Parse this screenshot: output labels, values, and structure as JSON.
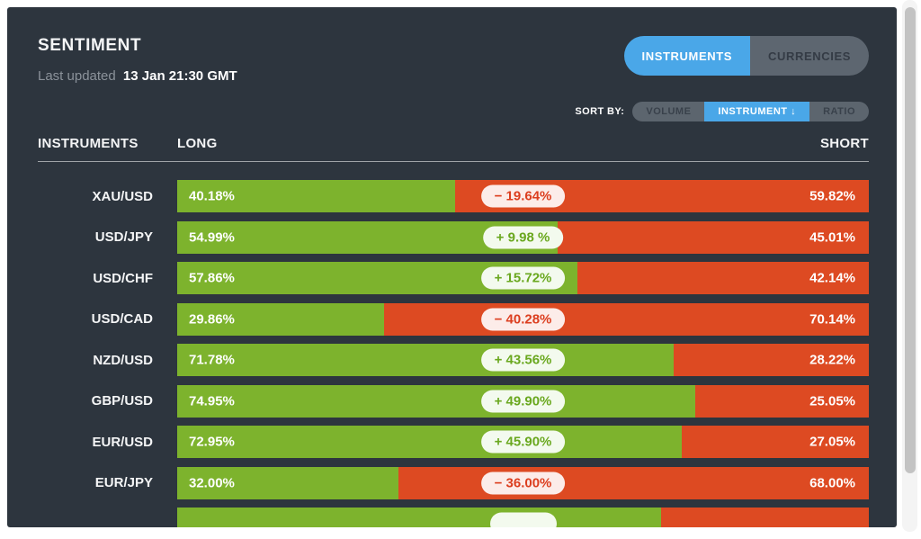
{
  "header": {
    "title": "SENTIMENT",
    "last_updated_label": "Last updated",
    "last_updated_value": "13 Jan 21:30 GMT",
    "view_toggle": [
      {
        "label": "INSTRUMENTS",
        "active": true
      },
      {
        "label": "CURRENCIES",
        "active": false
      }
    ]
  },
  "sort": {
    "label": "SORT BY:",
    "options": [
      {
        "label": "VOLUME",
        "active": false
      },
      {
        "label": "INSTRUMENT ↓",
        "active": true
      },
      {
        "label": "RATIO",
        "active": false
      }
    ]
  },
  "table": {
    "columns": {
      "instruments": "INSTRUMENTS",
      "long": "LONG",
      "short": "SHORT"
    }
  },
  "rows": [
    {
      "instrument": "XAU/USD",
      "long": "40.18%",
      "short": "59.82%",
      "delta": "− 19.64%",
      "delta_sign": "negative",
      "long_pct": 40.18
    },
    {
      "instrument": "USD/JPY",
      "long": "54.99%",
      "short": "45.01%",
      "delta": "+ 9.98 %",
      "delta_sign": "positive",
      "long_pct": 54.99
    },
    {
      "instrument": "USD/CHF",
      "long": "57.86%",
      "short": "42.14%",
      "delta": "+ 15.72%",
      "delta_sign": "positive",
      "long_pct": 57.86
    },
    {
      "instrument": "USD/CAD",
      "long": "29.86%",
      "short": "70.14%",
      "delta": "− 40.28%",
      "delta_sign": "negative",
      "long_pct": 29.86
    },
    {
      "instrument": "NZD/USD",
      "long": "71.78%",
      "short": "28.22%",
      "delta": "+ 43.56%",
      "delta_sign": "positive",
      "long_pct": 71.78
    },
    {
      "instrument": "GBP/USD",
      "long": "74.95%",
      "short": "25.05%",
      "delta": "+ 49.90%",
      "delta_sign": "positive",
      "long_pct": 74.95
    },
    {
      "instrument": "EUR/USD",
      "long": "72.95%",
      "short": "27.05%",
      "delta": "+ 45.90%",
      "delta_sign": "positive",
      "long_pct": 72.95
    },
    {
      "instrument": "EUR/JPY",
      "long": "32.00%",
      "short": "68.00%",
      "delta": "− 36.00%",
      "delta_sign": "negative",
      "long_pct": 32.0
    },
    {
      "instrument": "",
      "long": "",
      "short": "",
      "delta": "",
      "delta_sign": "positive",
      "long_pct": 70,
      "partial": true
    }
  ],
  "chart_data": {
    "type": "bar",
    "subtype": "stacked-horizontal-sentiment",
    "title": "SENTIMENT",
    "categories": [
      "XAU/USD",
      "USD/JPY",
      "USD/CHF",
      "USD/CAD",
      "NZD/USD",
      "GBP/USD",
      "EUR/USD",
      "EUR/JPY"
    ],
    "series": [
      {
        "name": "LONG",
        "values": [
          40.18,
          54.99,
          57.86,
          29.86,
          71.78,
          74.95,
          72.95,
          32.0
        ]
      },
      {
        "name": "SHORT",
        "values": [
          59.82,
          45.01,
          42.14,
          70.14,
          28.22,
          25.05,
          27.05,
          68.0
        ]
      }
    ],
    "net_delta": [
      -19.64,
      9.98,
      15.72,
      -40.28,
      43.56,
      49.9,
      45.9,
      -36.0
    ],
    "xlim": [
      0,
      100
    ],
    "legend_position": "none",
    "grid": false
  },
  "colors": {
    "long_green": "#7db32d",
    "short_red": "#dd4a22",
    "accent_blue": "#4aa7e8",
    "card_bg": "#2d353e",
    "pill_negative_bg": "#fcece9",
    "pill_negative_text": "#dc3e1f",
    "pill_positive_bg": "#f3faee",
    "pill_positive_text": "#6aa81f"
  }
}
